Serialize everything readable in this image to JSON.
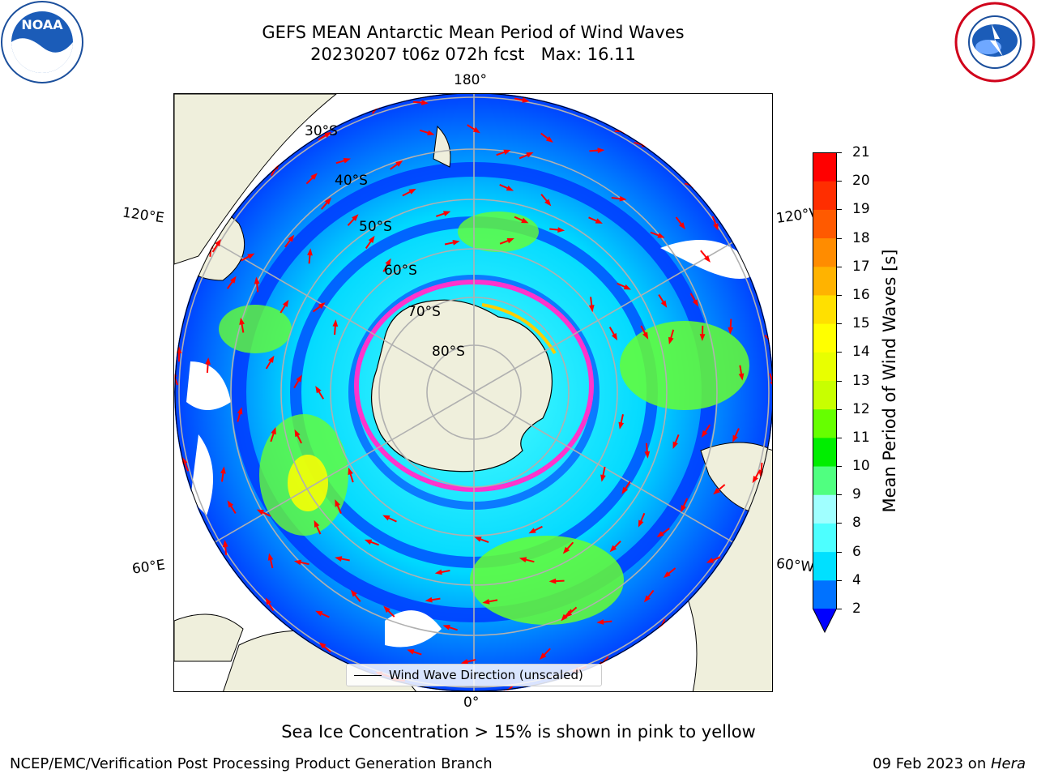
{
  "title_line1": "GEFS MEAN Antarctic Mean Period of Wind Waves",
  "title_line2": "20230207 t06z 072h fcst   Max: 16.11",
  "logos": {
    "left": "noaa-logo",
    "left_text": "NOAA",
    "right": "national-weather-service-logo",
    "left_ring_text": "NATIONAL OCEANIC AND ATMOSPHERIC ADMINISTRATION · U.S. DEPARTMENT OF COMMERCE",
    "right_ring_text": "NATIONAL WEATHER SERVICE"
  },
  "map": {
    "projection": "south-polar-stereographic",
    "longitude_labels": {
      "top": "180°",
      "upper_left": "120°E",
      "upper_right": "120°W",
      "lower_left": "60°E",
      "lower_right": "60°W",
      "bottom": "0°"
    },
    "latitude_labels": [
      "30°S",
      "40°S",
      "50°S",
      "60°S",
      "70°S",
      "80°S"
    ],
    "legend_text": "Wind Wave Direction (unscaled)",
    "colors": {
      "land": "#efefdc",
      "gridline": "#b0b0b0",
      "arrow": "#ff0000",
      "sea_ice": "#ff33cc"
    }
  },
  "colorbar": {
    "label": "Mean Period of Wind Waves [s]",
    "ticks": [
      "2",
      "4",
      "6",
      "8",
      "9",
      "10",
      "11",
      "12",
      "13",
      "14",
      "15",
      "16",
      "17",
      "18",
      "19",
      "20",
      "21"
    ],
    "colors": [
      "#0072ff",
      "#00e0ff",
      "#4dffff",
      "#a0ffff",
      "#50ff80",
      "#00ee00",
      "#66ff00",
      "#c8ff00",
      "#e8ff00",
      "#ffff00",
      "#ffe000",
      "#ffb300",
      "#ff8c00",
      "#ff5a00",
      "#ff2e00",
      "#ff0000"
    ],
    "under_color": "#0000ff",
    "extend": "min"
  },
  "note": "Sea Ice Concentration > 15% is shown in pink to yellow",
  "footer_left": "NCEP/EMC/Verification Post Processing Product Generation Branch",
  "footer_right_date": "09 Feb 2023 on ",
  "footer_right_system": "Hera"
}
